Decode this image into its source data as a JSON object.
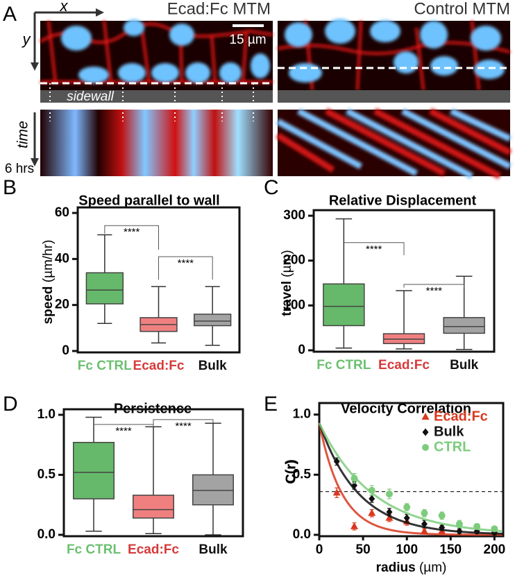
{
  "panel_a": {
    "label": "A",
    "left_title": "Ecad:Fc MTM",
    "right_title": "Control MTM",
    "x_axis": "x",
    "y_axis": "y",
    "time_axis": "time",
    "duration": "6 hrs",
    "scale_bar": "15 µm",
    "wall_label": "sidewall"
  },
  "chart_data": [
    {
      "type": "box",
      "label": "B",
      "title": "Speed parallel to wall",
      "ylabel": "speed",
      "ylabel_unit": "(µm/hr)",
      "ylim": [
        0,
        60
      ],
      "yticks": [
        0,
        20,
        40,
        60
      ],
      "boxes": [
        {
          "name": "Fc CTRL",
          "color": "#66b96a",
          "label_color": "#6cc070",
          "min": 12,
          "q1": 20.5,
          "median": 26.5,
          "q3": 34,
          "max": 50.5
        },
        {
          "name": "Ecad:Fc",
          "color": "#f08080",
          "label_color": "#d63a3a",
          "min": 3.5,
          "q1": 8.5,
          "median": 11.5,
          "q3": 14.5,
          "max": 28
        },
        {
          "name": "Bulk",
          "color": "#a3a3a3",
          "label_color": "#111111",
          "min": 2.5,
          "q1": 11,
          "median": 13,
          "q3": 16,
          "max": 28
        }
      ],
      "annotations": [
        {
          "text": "****",
          "from": 0,
          "to": 1,
          "y": 54.5,
          "ends": [
            51,
            44
          ]
        },
        {
          "text": "****",
          "from": 1,
          "to": 2,
          "y": 41,
          "ends": [
            31,
            31
          ]
        }
      ]
    },
    {
      "type": "box",
      "label": "C",
      "title": "Relative Displacement",
      "ylabel": "travel",
      "ylabel_unit": "(µm)",
      "ylim": [
        0,
        300
      ],
      "yticks": [
        0,
        100,
        200,
        300
      ],
      "boxes": [
        {
          "name": "Fc CTRL",
          "color": "#66b96a",
          "label_color": "#6cc070",
          "min": 5,
          "q1": 55,
          "median": 98,
          "q3": 148,
          "max": 293
        },
        {
          "name": "Ecad:Fc",
          "color": "#f08080",
          "label_color": "#d63a3a",
          "min": 3,
          "q1": 15,
          "median": 25,
          "q3": 37,
          "max": 133
        },
        {
          "name": "Bulk",
          "color": "#a3a3a3",
          "label_color": "#111111",
          "min": 2,
          "q1": 38,
          "median": 53,
          "q3": 73,
          "max": 165
        }
      ],
      "annotations": [
        {
          "text": "****",
          "from": 0,
          "to": 1,
          "y": 240,
          "ends": [
            240,
            212
          ]
        },
        {
          "text": "****",
          "from": 1,
          "to": 2,
          "y": 147,
          "ends": [
            140,
            140
          ]
        }
      ]
    },
    {
      "type": "box",
      "label": "D",
      "title": "Persistence",
      "ylim": [
        0,
        1.0
      ],
      "yticks": [
        {
          "value": 0,
          "label": "0.0"
        },
        {
          "value": 0.5,
          "label": "0.5"
        },
        {
          "value": 1,
          "label": "1.0"
        }
      ],
      "boxes": [
        {
          "name": "Fc CTRL",
          "color": "#66b96a",
          "label_color": "#6cc070",
          "min": 0.03,
          "q1": 0.3,
          "median": 0.52,
          "q3": 0.77,
          "max": 0.98
        },
        {
          "name": "Ecad:Fc",
          "color": "#f08080",
          "label_color": "#d63a3a",
          "min": 0.01,
          "q1": 0.14,
          "median": 0.21,
          "q3": 0.33,
          "max": 0.9
        },
        {
          "name": "Bulk",
          "color": "#a3a3a3",
          "label_color": "#111111",
          "min": 0,
          "q1": 0.25,
          "median": 0.37,
          "q3": 0.5,
          "max": 0.93
        }
      ],
      "annotations": [
        {
          "text": "****",
          "from": 0,
          "to": 1,
          "y": 0.92,
          "ends": [
            0.92,
            0.9
          ]
        },
        {
          "text": "****",
          "from": 1,
          "to": 2,
          "y": 0.96,
          "ends": [
            0.9,
            0.93
          ]
        }
      ]
    },
    {
      "type": "scatter",
      "label": "E",
      "title": "Velocity Correlation",
      "xlabel": "radius",
      "xlabel_unit": "(µm)",
      "ylabel": "C(r)",
      "xlim": [
        0,
        210
      ],
      "xticks": [
        0,
        50,
        100,
        150,
        200
      ],
      "ylim": [
        0,
        1.05
      ],
      "yticks": [
        {
          "value": 0,
          "label": "0.0"
        },
        {
          "value": 0.5,
          "label": "0.5"
        },
        {
          "value": 1,
          "label": "1.0"
        }
      ],
      "threshold": 0.36,
      "legend": "upper right",
      "series": [
        {
          "name": "Ecad:Fc",
          "color": "#d9381e",
          "marker": "triangle",
          "x": [
            20,
            40,
            60,
            80,
            100,
            120,
            140
          ],
          "values": [
            0.35,
            0.07,
            0.18,
            0.14,
            0.11,
            0.03,
            0.03
          ],
          "errors": [
            0.04,
            0.03,
            0.03,
            0.03,
            0.03,
            0.02,
            0.02
          ],
          "fit": {
            "a": 0.93,
            "length": 26
          }
        },
        {
          "name": "Bulk",
          "color": "#111111",
          "marker": "diamond",
          "x": [
            20,
            40,
            60,
            80,
            100,
            120,
            140,
            160,
            180,
            200
          ],
          "values": [
            0.61,
            0.41,
            0.3,
            0.19,
            0.14,
            0.09,
            0.06,
            0.03,
            0.03,
            0.02
          ],
          "errors": [
            0.03,
            0.03,
            0.03,
            0.03,
            0.03,
            0.03,
            0.02,
            0.02,
            0.02,
            0.02
          ],
          "fit": {
            "a": 0.93,
            "length": 45
          }
        },
        {
          "name": "CTRL",
          "color": "#7ccc7c",
          "marker": "circle",
          "x": [
            40,
            60,
            80,
            100,
            120,
            140,
            160,
            180,
            200
          ],
          "values": [
            0.47,
            0.37,
            0.34,
            0.23,
            0.18,
            0.16,
            0.09,
            0.07,
            0.05
          ],
          "errors": [
            0.04,
            0.04,
            0.04,
            0.03,
            0.03,
            0.03,
            0.03,
            0.02,
            0.02
          ],
          "fit": {
            "a": 0.93,
            "length": 61
          }
        }
      ]
    }
  ]
}
